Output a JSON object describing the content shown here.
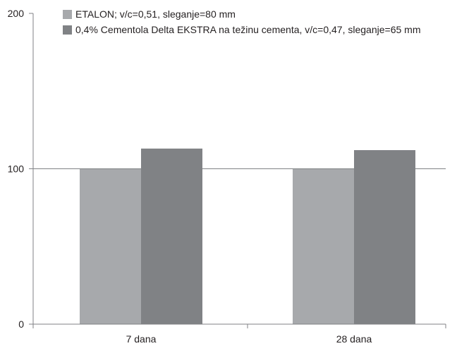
{
  "chart_data": {
    "type": "bar",
    "title": "",
    "xlabel": "",
    "ylabel": "",
    "categories": [
      "7 dana",
      "28 dana"
    ],
    "series": [
      {
        "name": "ETALON; v/c=0,51, sleganje=80 mm",
        "values": [
          100,
          100
        ],
        "color": "#a7a9ac"
      },
      {
        "name": "0,4% Cementola Delta EKSTRA na težinu cementa, v/c=0,47, sleganje=65 mm",
        "values": [
          113,
          112
        ],
        "color": "#808285"
      }
    ],
    "ylim": [
      0,
      200
    ],
    "yticks": [
      0,
      100,
      200
    ],
    "grid": {
      "horizontal_at": [
        100
      ]
    },
    "legend": "top-left",
    "axis_color": "#808285",
    "text_color": "#231f20"
  }
}
